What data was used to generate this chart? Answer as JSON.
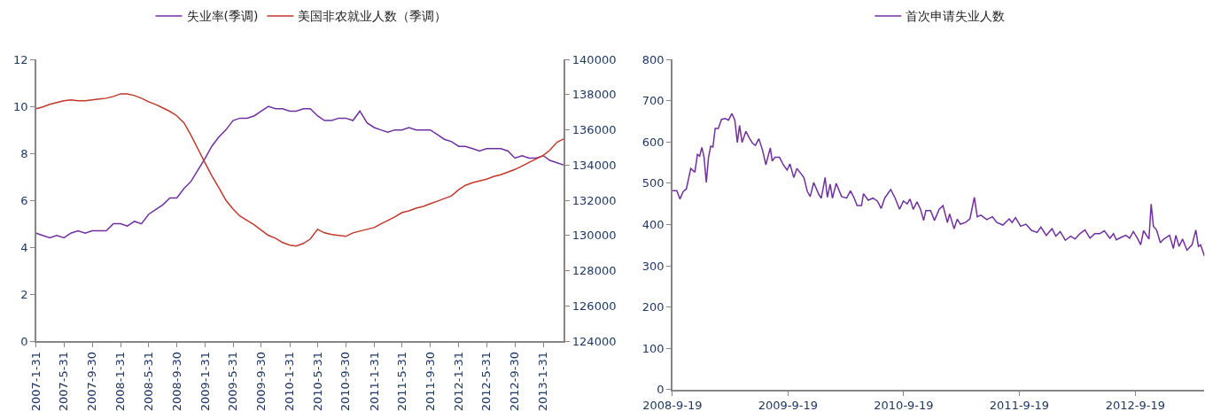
{
  "chart_data": [
    {
      "type": "line",
      "legend": "top",
      "grid": false,
      "x": [
        "2007-01-31",
        "2007-02-28",
        "2007-03-31",
        "2007-04-30",
        "2007-05-31",
        "2007-06-30",
        "2007-07-31",
        "2007-08-31",
        "2007-09-30",
        "2007-10-31",
        "2007-11-30",
        "2007-12-31",
        "2008-01-31",
        "2008-02-29",
        "2008-03-31",
        "2008-04-30",
        "2008-05-31",
        "2008-06-30",
        "2008-07-31",
        "2008-08-31",
        "2008-09-30",
        "2008-10-31",
        "2008-11-30",
        "2008-12-31",
        "2009-01-31",
        "2009-02-28",
        "2009-03-31",
        "2009-04-30",
        "2009-05-31",
        "2009-06-30",
        "2009-07-31",
        "2009-08-31",
        "2009-09-30",
        "2009-10-31",
        "2009-11-30",
        "2009-12-31",
        "2010-01-31",
        "2010-02-28",
        "2010-03-31",
        "2010-04-30",
        "2010-05-31",
        "2010-06-30",
        "2010-07-31",
        "2010-08-31",
        "2010-09-30",
        "2010-10-31",
        "2010-11-30",
        "2010-12-31",
        "2011-01-31",
        "2011-02-28",
        "2011-03-31",
        "2011-04-30",
        "2011-05-31",
        "2011-06-30",
        "2011-07-31",
        "2011-08-31",
        "2011-09-30",
        "2011-10-31",
        "2011-11-30",
        "2011-12-31",
        "2012-01-31",
        "2012-02-29",
        "2012-03-31",
        "2012-04-30",
        "2012-05-31",
        "2012-06-30",
        "2012-07-31",
        "2012-08-31",
        "2012-09-30",
        "2012-10-31",
        "2012-11-30",
        "2012-12-31",
        "2013-01-31",
        "2013-02-28",
        "2013-03-31",
        "2013-04-30"
      ],
      "series": [
        {
          "name": "失业率(季调)",
          "color": "#7030a0",
          "values": [
            4.6,
            4.5,
            4.4,
            4.5,
            4.4,
            4.6,
            4.7,
            4.6,
            4.7,
            4.7,
            4.7,
            5.0,
            5.0,
            4.9,
            5.1,
            5.0,
            5.4,
            5.6,
            5.8,
            6.1,
            6.1,
            6.5,
            6.8,
            7.3,
            7.8,
            8.3,
            8.7,
            9.0,
            9.4,
            9.5,
            9.5,
            9.6,
            9.8,
            10.0,
            9.9,
            9.9,
            9.8,
            9.8,
            9.9,
            9.9,
            9.6,
            9.4,
            9.4,
            9.5,
            9.5,
            9.4,
            9.8,
            9.3,
            9.1,
            9.0,
            8.9,
            9.0,
            9.0,
            9.1,
            9.0,
            9.0,
            9.0,
            8.8,
            8.6,
            8.5,
            8.3,
            8.3,
            8.2,
            8.1,
            8.2,
            8.2,
            8.2,
            8.1,
            7.8,
            7.9,
            7.8,
            7.8,
            7.9,
            7.7,
            7.6,
            7.5
          ]
        },
        {
          "name": "美国非农就业人数（季调）",
          "color": "#c0392b",
          "axis": "y2",
          "values": [
            137200,
            137300,
            137450,
            137550,
            137650,
            137700,
            137650,
            137650,
            137700,
            137750,
            137800,
            137900,
            138050,
            138050,
            137950,
            137800,
            137600,
            137450,
            137250,
            137050,
            136800,
            136400,
            135700,
            134900,
            134100,
            133400,
            132700,
            132000,
            131500,
            131100,
            130850,
            130600,
            130300,
            130000,
            129850,
            129600,
            129450,
            129400,
            129550,
            129800,
            130350,
            130150,
            130050,
            130000,
            129950,
            130150,
            130250,
            130350,
            130450,
            130650,
            130850,
            131050,
            131300,
            131400,
            131550,
            131650,
            131800,
            131950,
            132100,
            132250,
            132600,
            132850,
            133000,
            133100,
            133200,
            133350,
            133450,
            133600,
            133750,
            133950,
            134150,
            134350,
            134550,
            134850,
            135300,
            135500
          ]
        }
      ],
      "xlim": [
        "2007-01-31",
        "2013-04-30"
      ],
      "xticks": [
        {
          "value": "2007-01-31",
          "label": "2007-1-31"
        },
        {
          "value": "2007-05-31",
          "label": "2007-5-31"
        },
        {
          "value": "2007-09-30",
          "label": "2007-9-30"
        },
        {
          "value": "2008-01-31",
          "label": "2008-1-31"
        },
        {
          "value": "2008-05-31",
          "label": "2008-5-31"
        },
        {
          "value": "2008-09-30",
          "label": "2008-9-30"
        },
        {
          "value": "2009-01-31",
          "label": "2009-1-31"
        },
        {
          "value": "2009-05-31",
          "label": "2009-5-31"
        },
        {
          "value": "2009-09-30",
          "label": "2009-9-30"
        },
        {
          "value": "2010-01-31",
          "label": "2010-1-31"
        },
        {
          "value": "2010-05-31",
          "label": "2010-5-31"
        },
        {
          "value": "2010-09-30",
          "label": "2010-9-30"
        },
        {
          "value": "2011-01-31",
          "label": "2011-1-31"
        },
        {
          "value": "2011-05-31",
          "label": "2011-5-31"
        },
        {
          "value": "2011-09-30",
          "label": "2011-9-30"
        },
        {
          "value": "2012-01-31",
          "label": "2012-1-31"
        },
        {
          "value": "2012-05-31",
          "label": "2012-5-31"
        },
        {
          "value": "2012-09-30",
          "label": "2012-9-30"
        },
        {
          "value": "2013-01-31",
          "label": "2013-1-31"
        }
      ],
      "ylim": [
        0,
        12
      ],
      "yticks": [
        0,
        2,
        4,
        6,
        8,
        10,
        12
      ],
      "y2lim": [
        124000,
        140000
      ],
      "y2ticks": [
        124000,
        126000,
        128000,
        130000,
        132000,
        134000,
        136000,
        138000,
        140000
      ]
    },
    {
      "type": "line",
      "legend": "top",
      "grid": false,
      "x": [
        "2008-09-19",
        "2008-10-03",
        "2008-10-13",
        "2008-10-23",
        "2008-11-02",
        "2008-11-16",
        "2008-11-29",
        "2008-12-07",
        "2008-12-14",
        "2008-12-21",
        "2008-12-28",
        "2009-01-04",
        "2009-01-11",
        "2009-01-18",
        "2009-01-25",
        "2009-02-01",
        "2009-02-11",
        "2009-02-21",
        "2009-03-05",
        "2009-03-15",
        "2009-03-26",
        "2009-04-04",
        "2009-04-12",
        "2009-04-19",
        "2009-04-27",
        "2009-05-09",
        "2009-05-21",
        "2009-05-30",
        "2009-06-08",
        "2009-06-19",
        "2009-07-01",
        "2009-07-11",
        "2009-07-25",
        "2009-07-31",
        "2009-08-09",
        "2009-08-23",
        "2009-09-04",
        "2009-09-16",
        "2009-09-25",
        "2009-10-07",
        "2009-10-17",
        "2009-11-08",
        "2009-11-19",
        "2009-11-28",
        "2009-12-09",
        "2009-12-25",
        "2010-01-02",
        "2010-01-14",
        "2010-01-21",
        "2010-01-30",
        "2010-02-06",
        "2010-02-18",
        "2010-03-07",
        "2010-03-23",
        "2010-04-04",
        "2010-04-16",
        "2010-04-25",
        "2010-05-09",
        "2010-05-15",
        "2010-05-30",
        "2010-06-14",
        "2010-06-28",
        "2010-07-10",
        "2010-07-21",
        "2010-08-09",
        "2010-08-23",
        "2010-09-06",
        "2010-09-18",
        "2010-09-30",
        "2010-10-09",
        "2010-10-19",
        "2010-10-31",
        "2010-11-11",
        "2010-11-21",
        "2010-11-28",
        "2010-12-13",
        "2010-12-25",
        "2011-01-09",
        "2011-01-21",
        "2011-02-04",
        "2011-02-11",
        "2011-02-25",
        "2011-03-07",
        "2011-03-17",
        "2011-04-02",
        "2011-04-16",
        "2011-04-30",
        "2011-05-09",
        "2011-05-21",
        "2011-06-08",
        "2011-06-26",
        "2011-07-10",
        "2011-07-29",
        "2011-08-18",
        "2011-08-27",
        "2011-09-07",
        "2011-09-23",
        "2011-10-10",
        "2011-10-27",
        "2011-11-14",
        "2011-11-26",
        "2011-12-13",
        "2011-12-31",
        "2012-01-12",
        "2012-01-26",
        "2012-02-11",
        "2012-02-28",
        "2012-03-13",
        "2012-03-28",
        "2012-04-13",
        "2012-04-29",
        "2012-05-14",
        "2012-05-30",
        "2012-06-13",
        "2012-07-01",
        "2012-07-12",
        "2012-07-21",
        "2012-08-05",
        "2012-08-20",
        "2012-09-01",
        "2012-09-13",
        "2012-09-27",
        "2012-10-06",
        "2012-10-15",
        "2012-11-01",
        "2012-11-08",
        "2012-11-15",
        "2012-11-25",
        "2012-12-07",
        "2012-12-18",
        "2013-01-05",
        "2013-01-17",
        "2013-01-25",
        "2013-02-04",
        "2013-02-15",
        "2013-03-01",
        "2013-03-17",
        "2013-03-29",
        "2013-04-06",
        "2013-04-13",
        "2013-04-25"
      ],
      "series": [
        {
          "name": "首次申请失业人数",
          "color": "#7030a0",
          "values": [
            482,
            482,
            462,
            480,
            486,
            536,
            527,
            570,
            566,
            587,
            563,
            502,
            563,
            590,
            588,
            633,
            633,
            655,
            657,
            653,
            669,
            653,
            599,
            640,
            599,
            626,
            608,
            597,
            592,
            608,
            579,
            545,
            586,
            554,
            563,
            563,
            545,
            532,
            547,
            514,
            536,
            514,
            480,
            468,
            502,
            473,
            464,
            514,
            466,
            498,
            464,
            500,
            468,
            464,
            482,
            464,
            446,
            446,
            475,
            459,
            464,
            457,
            439,
            464,
            485,
            464,
            437,
            457,
            450,
            462,
            437,
            455,
            437,
            410,
            434,
            434,
            410,
            437,
            446,
            405,
            426,
            390,
            413,
            401,
            405,
            414,
            466,
            419,
            423,
            412,
            419,
            405,
            399,
            414,
            405,
            417,
            396,
            401,
            386,
            381,
            394,
            374,
            390,
            372,
            383,
            362,
            372,
            365,
            378,
            387,
            367,
            378,
            378,
            385,
            367,
            378,
            363,
            369,
            374,
            367,
            383,
            365,
            351,
            385,
            365,
            450,
            396,
            387,
            356,
            365,
            374,
            342,
            374,
            347,
            365,
            338,
            351,
            387,
            347,
            351,
            324
          ]
        }
      ],
      "xlim": [
        "2008-09-19",
        "2013-04-25"
      ],
      "xticks": [
        {
          "value": "2008-09-19",
          "label": "2008-9-19"
        },
        {
          "value": "2009-09-19",
          "label": "2009-9-19"
        },
        {
          "value": "2010-09-19",
          "label": "2010-9-19"
        },
        {
          "value": "2011-09-19",
          "label": "2011-9-19"
        },
        {
          "value": "2012-09-19",
          "label": "2012-9-19"
        }
      ],
      "ylim": [
        0,
        800
      ],
      "yticks": [
        0,
        100,
        200,
        300,
        400,
        500,
        600,
        700,
        800
      ]
    }
  ]
}
